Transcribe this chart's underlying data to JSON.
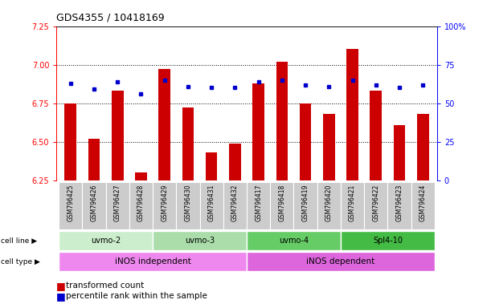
{
  "title": "GDS4355 / 10418169",
  "samples": [
    "GSM796425",
    "GSM796426",
    "GSM796427",
    "GSM796428",
    "GSM796429",
    "GSM796430",
    "GSM796431",
    "GSM796432",
    "GSM796417",
    "GSM796418",
    "GSM796419",
    "GSM796420",
    "GSM796421",
    "GSM796422",
    "GSM796423",
    "GSM796424"
  ],
  "red_values": [
    6.75,
    6.52,
    6.83,
    6.3,
    6.97,
    6.72,
    6.43,
    6.49,
    6.88,
    7.02,
    6.75,
    6.68,
    7.1,
    6.83,
    6.61,
    6.68
  ],
  "blue_values": [
    63,
    59,
    64,
    56,
    65,
    61,
    60,
    60,
    64,
    65,
    62,
    61,
    65,
    62,
    60,
    62
  ],
  "ylim_left": [
    6.25,
    7.25
  ],
  "ylim_right": [
    0,
    100
  ],
  "yticks_left": [
    6.25,
    6.5,
    6.75,
    7.0,
    7.25
  ],
  "yticks_right": [
    0,
    25,
    50,
    75,
    100
  ],
  "ytick_labels_right": [
    "0",
    "25",
    "50",
    "75",
    "100%"
  ],
  "bar_color": "#CC0000",
  "dot_color": "#0000CC",
  "cell_lines": [
    {
      "label": "uvmo-2",
      "start": 0,
      "end": 4,
      "color": "#cceecc"
    },
    {
      "label": "uvmo-3",
      "start": 4,
      "end": 8,
      "color": "#aaddaa"
    },
    {
      "label": "uvmo-4",
      "start": 8,
      "end": 12,
      "color": "#66cc66"
    },
    {
      "label": "Spl4-10",
      "start": 12,
      "end": 16,
      "color": "#44bb44"
    }
  ],
  "cell_types": [
    {
      "label": "iNOS independent",
      "start": 0,
      "end": 8,
      "color": "#ee88ee"
    },
    {
      "label": "iNOS dependent",
      "start": 8,
      "end": 16,
      "color": "#dd66dd"
    }
  ],
  "legend_red": "transformed count",
  "legend_blue": "percentile rank within the sample",
  "bar_width": 0.5,
  "ybase": 6.25,
  "xlim": [
    -0.6,
    15.6
  ],
  "hgrid_lines": [
    6.5,
    6.75,
    7.0
  ],
  "xlabel_bg": "#cccccc",
  "fig_bg": "white"
}
